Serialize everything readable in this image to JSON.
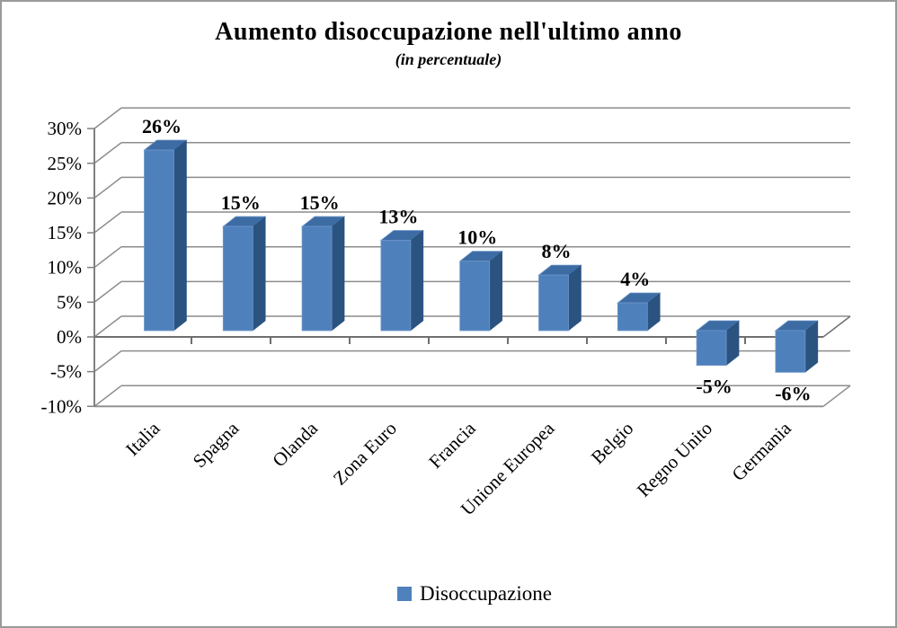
{
  "chart_data": {
    "type": "bar",
    "title": "Aumento disoccupazione nell'ultimo anno",
    "subtitle": "(in percentuale)",
    "series_name": "Disoccupazione",
    "categories": [
      "Italia",
      "Spagna",
      "Olanda",
      "Zona Euro",
      "Francia",
      "Unione Europea",
      "Belgio",
      "Regno Unito",
      "Germania"
    ],
    "values": [
      26,
      15,
      15,
      13,
      10,
      8,
      4,
      -5,
      -6
    ],
    "data_labels": [
      "26%",
      "15%",
      "15%",
      "13%",
      "10%",
      "8%",
      "4%",
      "-5%",
      "-6%"
    ],
    "xlabel": "",
    "ylabel": "",
    "ylim": [
      -10,
      30
    ],
    "y_axis": {
      "ticks": [
        "30%",
        "25%",
        "20%",
        "15%",
        "10%",
        "5%",
        "0%",
        "-5%",
        "-10%"
      ],
      "min": -10,
      "max": 30,
      "step": 5
    },
    "grid": true,
    "effect": "3d",
    "legend": {
      "label": "Disoccupazione",
      "position": "bottom",
      "swatch_color": "#4F81BD"
    },
    "style": {
      "bar_front": "#4E80BC",
      "bar_top": "#3D6BA3",
      "bar_side": "#2A5380",
      "bar_edge": "#6E96C8",
      "grid_color": "#8C8C8C",
      "axis_color": "#808080",
      "zero_line_color": "#6f6f6f",
      "text_color": "#000000"
    }
  }
}
